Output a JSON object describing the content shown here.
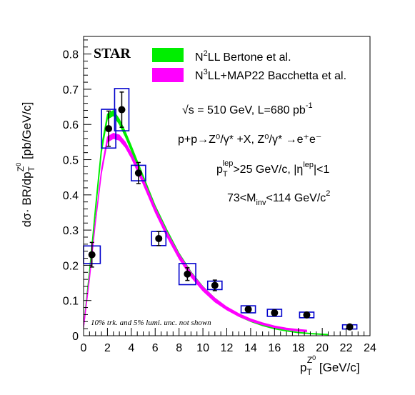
{
  "chart_data": {
    "type": "scatter",
    "experiment_label": "STAR",
    "xlabel": {
      "main": "p",
      "sub": "T",
      "sup": "Z",
      "supsub": "0",
      "unit": " [GeV/c]"
    },
    "ylabel": {
      "prefix": "dσ· BR/dp",
      "sub": "T",
      "sup": "Z",
      "supsub": "0",
      "unit": " [pb/GeV/c]"
    },
    "xlim": [
      0,
      24
    ],
    "ylim": [
      0,
      0.85
    ],
    "x_ticks": [
      0,
      2,
      4,
      6,
      8,
      10,
      12,
      14,
      16,
      18,
      20,
      22,
      24
    ],
    "y_ticks": [
      0,
      0.1,
      0.2,
      0.3,
      0.4,
      0.5,
      0.6,
      0.7,
      0.8
    ],
    "x_tick_labels": [
      "0",
      "2",
      "4",
      "6",
      "8",
      "10",
      "12",
      "14",
      "16",
      "18",
      "20",
      "22",
      "24"
    ],
    "y_tick_labels": [
      "0",
      "0.1",
      "0.2",
      "0.3",
      "0.4",
      "0.5",
      "0.6",
      "0.7",
      "0.8"
    ],
    "legend": [
      {
        "name_parts": [
          "N",
          "2",
          "LL Bertone et al."
        ],
        "color": "#00ee00"
      },
      {
        "name_parts": [
          "N",
          "3",
          "LL+MAP22 Bacchetta et al."
        ],
        "color": "#ff00ff"
      }
    ],
    "annotations": [
      {
        "id": "sqrt_s",
        "parts": [
          "√s = 510 GeV, L=680 pb",
          "-1"
        ]
      },
      {
        "id": "process",
        "text": "p+p→Z⁰/γ* +X, Z⁰/γ* →e⁺e⁻"
      },
      {
        "id": "pt_cut",
        "parts": [
          "p",
          "T",
          "lep",
          ">25 GeV/c, |η",
          "lep",
          "|<1"
        ]
      },
      {
        "id": "mass_cut",
        "parts": [
          "73<M",
          "inv",
          "<114 GeV/c",
          "2"
        ]
      }
    ],
    "footnote": "10% trk. and 5% lumi. unc. not shown",
    "data_points": {
      "x": [
        0.7,
        2.1,
        3.2,
        4.6,
        6.3,
        8.7,
        11.0,
        13.8,
        16.0,
        18.7,
        22.3
      ],
      "y": [
        0.23,
        0.588,
        0.642,
        0.462,
        0.276,
        0.175,
        0.143,
        0.075,
        0.065,
        0.059,
        0.025
      ],
      "stat_err": [
        0.035,
        0.05,
        0.05,
        0.03,
        0.02,
        0.018,
        0.015,
        0.008,
        0.008,
        0.007,
        0.004
      ],
      "box_halfwidth": [
        0.7,
        0.6,
        0.6,
        0.6,
        0.6,
        0.7,
        0.6,
        0.6,
        0.6,
        0.6,
        0.6
      ],
      "box_halfheight": [
        0.025,
        0.055,
        0.06,
        0.022,
        0.02,
        0.03,
        0.012,
        0.01,
        0.01,
        0.008,
        0.006
      ],
      "marker_color": "#000000",
      "box_color": "#0000cc"
    },
    "bands": [
      {
        "color": "#00ee00",
        "x": [
          0.0,
          0.5,
          1.0,
          1.5,
          2.0,
          2.5,
          3.0,
          3.5,
          4.0,
          5.0,
          6.0,
          7.0,
          8.0,
          9.0,
          10.0,
          11.0,
          12.0,
          13.0,
          14.0,
          15.0,
          16.0,
          17.0,
          18.0,
          19.0,
          20.0,
          20.5
        ],
        "lo": [
          0.02,
          0.17,
          0.35,
          0.52,
          0.615,
          0.625,
          0.6,
          0.565,
          0.525,
          0.44,
          0.355,
          0.285,
          0.222,
          0.172,
          0.132,
          0.1,
          0.075,
          0.055,
          0.04,
          0.028,
          0.019,
          0.013,
          0.008,
          0.005,
          0.003,
          0.002
        ],
        "hi": [
          0.03,
          0.19,
          0.37,
          0.54,
          0.63,
          0.64,
          0.615,
          0.58,
          0.54,
          0.455,
          0.37,
          0.3,
          0.235,
          0.182,
          0.14,
          0.107,
          0.081,
          0.06,
          0.044,
          0.031,
          0.022,
          0.015,
          0.01,
          0.007,
          0.005,
          0.004
        ]
      },
      {
        "color": "#ff00ff",
        "x": [
          0.0,
          0.5,
          1.0,
          1.5,
          2.0,
          2.5,
          3.0,
          3.5,
          4.0,
          5.0,
          6.0,
          7.0,
          8.0,
          9.0,
          10.0,
          11.0,
          12.0,
          13.0,
          14.0,
          15.0,
          16.0,
          17.0,
          18.0,
          18.7
        ],
        "lo": [
          0.02,
          0.16,
          0.32,
          0.46,
          0.55,
          0.56,
          0.555,
          0.535,
          0.505,
          0.43,
          0.35,
          0.28,
          0.218,
          0.167,
          0.127,
          0.096,
          0.073,
          0.055,
          0.041,
          0.031,
          0.023,
          0.017,
          0.013,
          0.011
        ],
        "hi": [
          0.03,
          0.17,
          0.33,
          0.475,
          0.565,
          0.575,
          0.57,
          0.55,
          0.52,
          0.445,
          0.365,
          0.294,
          0.232,
          0.18,
          0.139,
          0.107,
          0.082,
          0.063,
          0.048,
          0.037,
          0.028,
          0.022,
          0.018,
          0.016
        ]
      }
    ]
  }
}
